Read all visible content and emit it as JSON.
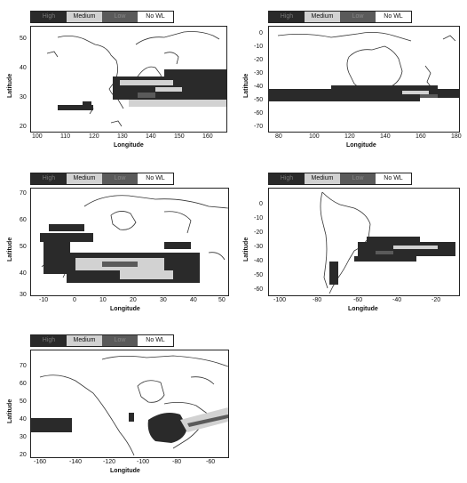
{
  "legend": {
    "high": "High",
    "medium": "Medium",
    "low": "Low",
    "none": "No WL"
  },
  "colors": {
    "high": "#2a2a2a",
    "medium": "#d2d2d2",
    "low": "#5a5a5a",
    "none": "#ffffff",
    "coast": "#333333"
  },
  "panels": [
    {
      "id": "east-asia",
      "xlabel": "Longitude",
      "ylabel": "Latitude",
      "xticks": [
        "100",
        "110",
        "120",
        "130",
        "140",
        "150",
        "160"
      ],
      "yticks": [
        "50",
        "40",
        "30",
        "20"
      ]
    },
    {
      "id": "australia",
      "xlabel": "Longitude",
      "ylabel": "Latitude",
      "xticks": [
        "80",
        "100",
        "120",
        "140",
        "160",
        "180"
      ],
      "yticks": [
        "0",
        "-10",
        "-20",
        "-30",
        "-40",
        "-50",
        "-60",
        "-70"
      ]
    },
    {
      "id": "europe",
      "xlabel": "Longitude",
      "ylabel": "Latitude",
      "xticks": [
        "-10",
        "0",
        "10",
        "20",
        "30",
        "40",
        "50"
      ],
      "yticks": [
        "70",
        "60",
        "50",
        "40",
        "30"
      ]
    },
    {
      "id": "south-america",
      "xlabel": "Longitude",
      "ylabel": "Latitude",
      "xticks": [
        "-100",
        "-80",
        "-60",
        "-40",
        "-20"
      ],
      "yticks": [
        "0",
        "-10",
        "-20",
        "-30",
        "-40",
        "-50",
        "-60"
      ]
    },
    {
      "id": "north-america",
      "xlabel": "Longitude",
      "ylabel": "Latitude",
      "xticks": [
        "-160",
        "-140",
        "-120",
        "-100",
        "-80",
        "-60"
      ],
      "yticks": [
        "70",
        "60",
        "50",
        "40",
        "30",
        "20"
      ]
    }
  ]
}
